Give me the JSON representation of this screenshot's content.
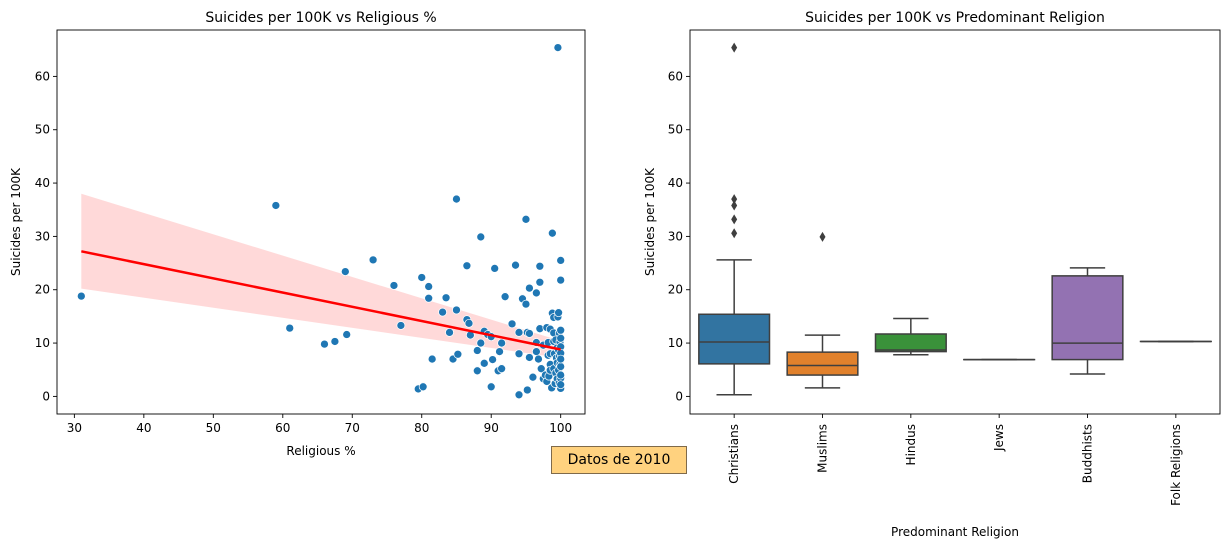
{
  "note": "Datos de 2010",
  "colors": {
    "scatter_point": "#1f77b4",
    "regression_line": "#ff0000",
    "confidence_band": "#ffcccc",
    "box_edge": "#3f3f3f"
  },
  "chart_data": [
    {
      "type": "scatter",
      "title": "Suicides per 100K vs Religious %",
      "xlabel": "Religious %",
      "ylabel": "Suicides per 100K",
      "xlim": [
        27.5,
        103.5
      ],
      "ylim": [
        -3.3,
        68.7
      ],
      "xticks": [
        30,
        40,
        50,
        60,
        70,
        80,
        90,
        100
      ],
      "yticks": [
        0,
        10,
        20,
        30,
        40,
        50,
        60
      ],
      "grid": false,
      "regression": {
        "x": [
          31,
          100
        ],
        "y": [
          27.2,
          8.8
        ],
        "ci_low": [
          20.2,
          7.2
        ],
        "ci_high": [
          38.0,
          10.4
        ]
      },
      "points": [
        [
          31,
          18.8
        ],
        [
          59,
          35.8
        ],
        [
          61,
          12.8
        ],
        [
          66,
          9.8
        ],
        [
          67.5,
          10.3
        ],
        [
          69,
          23.4
        ],
        [
          69.2,
          11.6
        ],
        [
          73,
          25.6
        ],
        [
          76,
          20.8
        ],
        [
          77,
          13.3
        ],
        [
          79.5,
          1.4
        ],
        [
          80,
          22.3
        ],
        [
          80.2,
          1.8
        ],
        [
          81,
          20.6
        ],
        [
          81,
          18.4
        ],
        [
          81.5,
          7.0
        ],
        [
          83,
          15.8
        ],
        [
          83.5,
          18.5
        ],
        [
          84,
          12.0
        ],
        [
          84.5,
          7.0
        ],
        [
          85,
          37.0
        ],
        [
          85,
          16.2
        ],
        [
          85.2,
          7.9
        ],
        [
          86.5,
          24.5
        ],
        [
          86.5,
          14.4
        ],
        [
          86.8,
          13.7
        ],
        [
          87,
          11.5
        ],
        [
          88,
          8.6
        ],
        [
          88,
          4.8
        ],
        [
          88.5,
          10.0
        ],
        [
          88.5,
          29.9
        ],
        [
          89,
          12.2
        ],
        [
          89,
          6.2
        ],
        [
          89.5,
          11.6
        ],
        [
          90,
          1.8
        ],
        [
          90,
          11.2
        ],
        [
          90.2,
          6.9
        ],
        [
          90.5,
          24.0
        ],
        [
          91,
          4.8
        ],
        [
          91.2,
          8.4
        ],
        [
          91.5,
          10.0
        ],
        [
          91.5,
          5.2
        ],
        [
          92,
          18.7
        ],
        [
          93,
          13.6
        ],
        [
          93.5,
          24.6
        ],
        [
          94,
          12.0
        ],
        [
          94,
          8.0
        ],
        [
          94,
          0.3
        ],
        [
          94.5,
          18.3
        ],
        [
          95,
          33.2
        ],
        [
          95,
          17.3
        ],
        [
          95.2,
          12.0
        ],
        [
          95.2,
          1.2
        ],
        [
          95.5,
          11.8
        ],
        [
          95.5,
          7.3
        ],
        [
          95.5,
          20.3
        ],
        [
          96,
          3.6
        ],
        [
          96.5,
          19.4
        ],
        [
          96.5,
          10.1
        ],
        [
          96.5,
          8.4
        ],
        [
          96.8,
          7.0
        ],
        [
          97,
          21.4
        ],
        [
          97,
          24.4
        ],
        [
          97,
          12.7
        ],
        [
          97.2,
          5.2
        ],
        [
          97.5,
          3.3
        ],
        [
          97.5,
          9.6
        ],
        [
          97.8,
          4.0
        ],
        [
          98,
          2.8
        ],
        [
          98,
          12.9
        ],
        [
          98.2,
          10.1
        ],
        [
          98.2,
          7.7
        ],
        [
          98.3,
          3.8
        ],
        [
          98.5,
          6.0
        ],
        [
          98.5,
          4.9
        ],
        [
          98.5,
          8.0
        ],
        [
          98.5,
          12.6
        ],
        [
          98.7,
          1.6
        ],
        [
          98.8,
          30.6
        ],
        [
          98.8,
          15.6
        ],
        [
          99,
          10.3
        ],
        [
          99,
          14.8
        ],
        [
          99,
          11.9
        ],
        [
          99,
          5.2
        ],
        [
          99.1,
          8.0
        ],
        [
          99.2,
          2.4
        ],
        [
          99.3,
          4.4
        ],
        [
          99.3,
          10.6
        ],
        [
          99.4,
          7.2
        ],
        [
          99.5,
          3.3
        ],
        [
          99.5,
          6.3
        ],
        [
          99.5,
          9.1
        ],
        [
          99.6,
          65.4
        ],
        [
          99.6,
          14.9
        ],
        [
          99.7,
          8.7
        ],
        [
          99.7,
          4.9
        ],
        [
          99.7,
          15.7
        ],
        [
          99.8,
          2.5
        ],
        [
          99.8,
          11.9
        ],
        [
          99.8,
          7.6
        ],
        [
          99.9,
          6.0
        ],
        [
          99.9,
          10.2
        ],
        [
          100,
          25.5
        ],
        [
          100,
          21.8
        ],
        [
          100,
          1.5
        ],
        [
          100,
          9.3
        ],
        [
          100,
          3.4
        ],
        [
          100,
          8.1
        ],
        [
          100,
          5.6
        ],
        [
          100,
          12.4
        ],
        [
          100,
          7.0
        ],
        [
          100,
          4.0
        ],
        [
          100,
          10.9
        ],
        [
          100,
          2.2
        ]
      ]
    },
    {
      "type": "box",
      "title": "Suicides per 100K vs Predominant Religion",
      "xlabel": "Predominant Religion",
      "ylabel": "Suicides per 100K",
      "ylim": [
        -3.3,
        68.7
      ],
      "yticks": [
        0,
        10,
        20,
        30,
        40,
        50,
        60
      ],
      "grid": false,
      "categories": [
        "Christians",
        "Muslims",
        "Hindus",
        "Jews",
        "Buddhists",
        "Folk Religions"
      ],
      "boxes": [
        {
          "name": "Christians",
          "color": "#3274a1",
          "whislo": 0.3,
          "q1": 6.1,
          "med": 10.2,
          "q3": 15.4,
          "whishi": 25.6,
          "fliers": [
            30.6,
            33.2,
            35.8,
            37.0,
            65.4
          ]
        },
        {
          "name": "Muslims",
          "color": "#e1812c",
          "whislo": 1.6,
          "q1": 4.0,
          "med": 5.8,
          "q3": 8.3,
          "whishi": 11.5,
          "fliers": [
            29.9
          ]
        },
        {
          "name": "Hindus",
          "color": "#3a923a",
          "whislo": 7.8,
          "q1": 8.4,
          "med": 8.7,
          "q3": 11.7,
          "whishi": 14.6,
          "fliers": []
        },
        {
          "name": "Jews",
          "color": "#c03d3e",
          "whislo": 6.9,
          "q1": 6.9,
          "med": 6.9,
          "q3": 6.9,
          "whishi": 6.9,
          "fliers": []
        },
        {
          "name": "Buddhists",
          "color": "#9372b2",
          "whislo": 4.2,
          "q1": 6.9,
          "med": 10.0,
          "q3": 22.6,
          "whishi": 24.1,
          "fliers": []
        },
        {
          "name": "Folk Religions",
          "color": "#845b53",
          "whislo": 10.3,
          "q1": 10.3,
          "med": 10.3,
          "q3": 10.3,
          "whishi": 10.3,
          "fliers": []
        }
      ]
    }
  ]
}
